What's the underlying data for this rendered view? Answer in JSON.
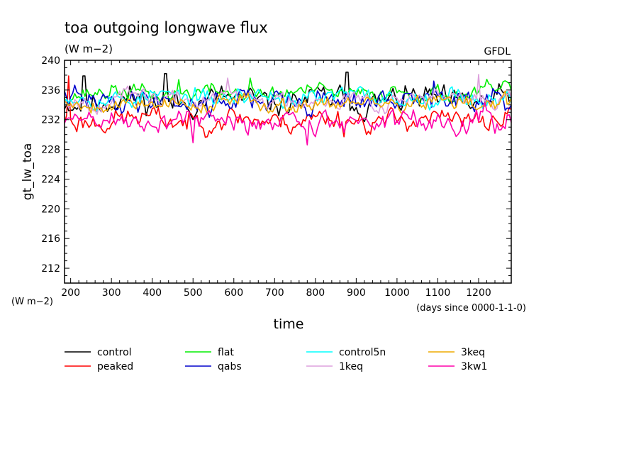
{
  "chart_data": {
    "type": "line",
    "title": "toa outgoing longwave flux",
    "units": "(W m−2)",
    "source": "GFDL",
    "ylabel": "gt_lw_toa",
    "yunits": "(W m−2)",
    "xlabel": "time",
    "xunits": "(days since 0000-1-1-0)",
    "xlim": [
      185,
      1280
    ],
    "ylim": [
      210,
      240
    ],
    "x_ticks": [
      200,
      300,
      400,
      500,
      600,
      700,
      800,
      900,
      1000,
      1100,
      1200
    ],
    "y_ticks": [
      212,
      216,
      220,
      224,
      228,
      232,
      236,
      240
    ],
    "grid": false,
    "legend_position": "bottom",
    "sample_step_days": 5,
    "series": [
      {
        "name": "control",
        "color": "#000000",
        "mean": 234.5,
        "amp": 1.4,
        "seed": 11,
        "spikes": [
          [
            232,
            237.9
          ],
          [
            432,
            238.2
          ],
          [
            878,
            238.4
          ]
        ]
      },
      {
        "name": "peaked",
        "color": "#ff0000",
        "mean": 232.0,
        "amp": 1.2,
        "seed": 23,
        "spikes": [
          [
            195,
            237.9
          ],
          [
            870,
            229.7
          ]
        ]
      },
      {
        "name": "flat",
        "color": "#00ee00",
        "mean": 235.6,
        "amp": 0.9,
        "seed": 37,
        "spikes": [
          [
            465,
            237.4
          ],
          [
            640,
            237.6
          ]
        ]
      },
      {
        "name": "qabs",
        "color": "#0000cc",
        "mean": 234.6,
        "amp": 1.3,
        "seed": 41,
        "spikes": [
          [
            1090,
            237.2
          ]
        ]
      },
      {
        "name": "control5n",
        "color": "#00ffff",
        "mean": 235.0,
        "amp": 1.0,
        "seed": 53,
        "spikes": []
      },
      {
        "name": "1keq",
        "color": "#dda0dd",
        "mean": 234.8,
        "amp": 1.0,
        "seed": 67,
        "spikes": [
          [
            585,
            237.6
          ],
          [
            1200,
            238.1
          ]
        ]
      },
      {
        "name": "3keq",
        "color": "#eeaa00",
        "mean": 234.2,
        "amp": 0.9,
        "seed": 79,
        "spikes": []
      },
      {
        "name": "3kw1",
        "color": "#ff00aa",
        "mean": 231.8,
        "amp": 1.3,
        "seed": 89,
        "spikes": [
          [
            500,
            228.9
          ],
          [
            780,
            228.6
          ]
        ]
      }
    ]
  }
}
